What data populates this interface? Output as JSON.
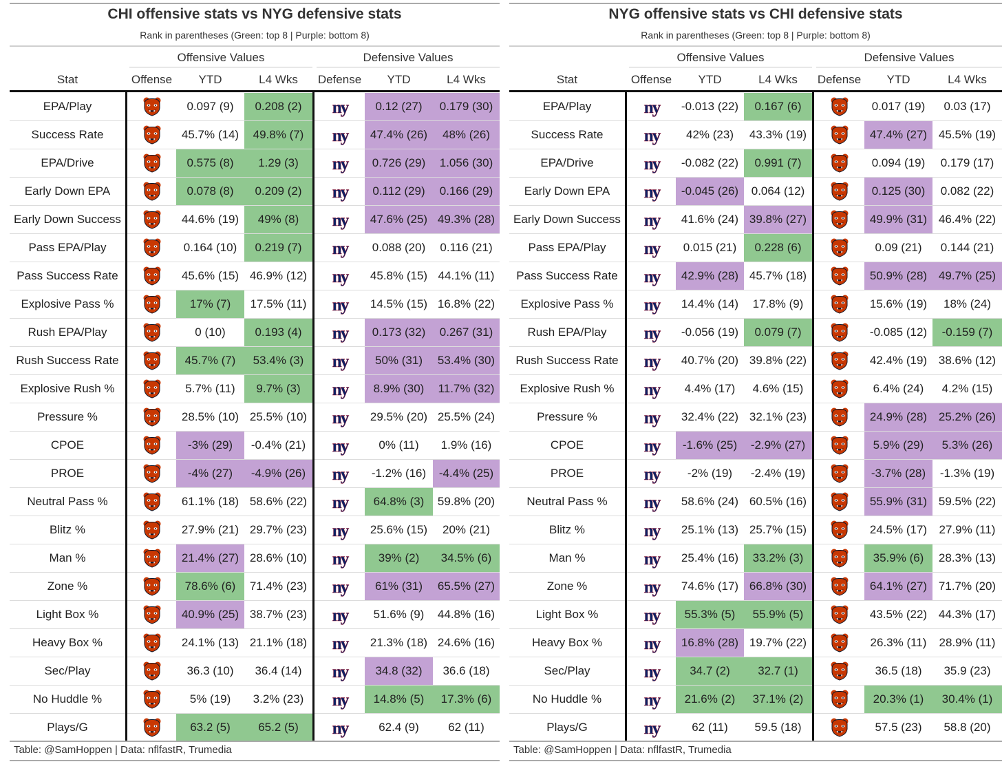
{
  "colors": {
    "green": "#90c890",
    "purple": "#c3a2d4",
    "bears": "#c83803",
    "giants": "#0b2265"
  },
  "column_headers": {
    "stat": "Stat",
    "offense": "Offense",
    "ytd": "YTD",
    "l4": "L4 Wks",
    "defense": "Defense"
  },
  "spanners": {
    "offensive": "Offensive Values",
    "defensive": "Defensive Values"
  },
  "subtitle": "Rank in parentheses (Green: top 8 | Purple: bottom 8)",
  "footer": "Table: @SamHoppen | Data: nflfastR, Trumedia",
  "tables": [
    {
      "title": "CHI offensive stats vs NYG defensive stats",
      "offense_logo": "bears-logo-icon",
      "defense_logo": "giants-ny-logo-icon",
      "rows": [
        {
          "stat": "EPA/Play",
          "off_ytd": "0.097 (9)",
          "off_l4": "0.208 (2)",
          "def_ytd": "0.12 (27)",
          "def_l4": "0.179 (30)",
          "hl": [
            "",
            "green",
            "purple",
            "purple"
          ]
        },
        {
          "stat": "Success Rate",
          "off_ytd": "45.7% (14)",
          "off_l4": "49.8% (7)",
          "def_ytd": "47.4% (26)",
          "def_l4": "48% (26)",
          "hl": [
            "",
            "green",
            "purple",
            "purple"
          ]
        },
        {
          "stat": "EPA/Drive",
          "off_ytd": "0.575 (8)",
          "off_l4": "1.29 (3)",
          "def_ytd": "0.726 (29)",
          "def_l4": "1.056 (30)",
          "hl": [
            "green",
            "green",
            "purple",
            "purple"
          ]
        },
        {
          "stat": "Early Down EPA",
          "off_ytd": "0.078 (8)",
          "off_l4": "0.209 (2)",
          "def_ytd": "0.112 (29)",
          "def_l4": "0.166 (29)",
          "hl": [
            "green",
            "green",
            "purple",
            "purple"
          ]
        },
        {
          "stat": "Early Down Success",
          "off_ytd": "44.6% (19)",
          "off_l4": "49% (8)",
          "def_ytd": "47.6% (25)",
          "def_l4": "49.3% (28)",
          "hl": [
            "",
            "green",
            "purple",
            "purple"
          ]
        },
        {
          "stat": "Pass EPA/Play",
          "off_ytd": "0.164 (10)",
          "off_l4": "0.219 (7)",
          "def_ytd": "0.088 (20)",
          "def_l4": "0.116 (21)",
          "hl": [
            "",
            "green",
            "",
            ""
          ]
        },
        {
          "stat": "Pass Success Rate",
          "off_ytd": "45.6% (15)",
          "off_l4": "46.9% (12)",
          "def_ytd": "45.8% (15)",
          "def_l4": "44.1% (11)",
          "hl": [
            "",
            "",
            "",
            ""
          ]
        },
        {
          "stat": "Explosive Pass %",
          "off_ytd": "17% (7)",
          "off_l4": "17.5% (11)",
          "def_ytd": "14.5% (15)",
          "def_l4": "16.8% (22)",
          "hl": [
            "green",
            "",
            "",
            ""
          ]
        },
        {
          "stat": "Rush EPA/Play",
          "off_ytd": "0 (10)",
          "off_l4": "0.193 (4)",
          "def_ytd": "0.173 (32)",
          "def_l4": "0.267 (31)",
          "hl": [
            "",
            "green",
            "purple",
            "purple"
          ]
        },
        {
          "stat": "Rush Success Rate",
          "off_ytd": "45.7% (7)",
          "off_l4": "53.4% (3)",
          "def_ytd": "50% (31)",
          "def_l4": "53.4% (30)",
          "hl": [
            "green",
            "green",
            "purple",
            "purple"
          ]
        },
        {
          "stat": "Explosive Rush %",
          "off_ytd": "5.7% (11)",
          "off_l4": "9.7% (3)",
          "def_ytd": "8.9% (30)",
          "def_l4": "11.7% (32)",
          "hl": [
            "",
            "green",
            "purple",
            "purple"
          ]
        },
        {
          "stat": "Pressure %",
          "off_ytd": "28.5% (10)",
          "off_l4": "25.5% (10)",
          "def_ytd": "29.5% (20)",
          "def_l4": "25.5% (24)",
          "hl": [
            "",
            "",
            "",
            ""
          ]
        },
        {
          "stat": "CPOE",
          "off_ytd": "-3% (29)",
          "off_l4": "-0.4% (21)",
          "def_ytd": "0% (11)",
          "def_l4": "1.9% (16)",
          "hl": [
            "purple",
            "",
            "",
            ""
          ]
        },
        {
          "stat": "PROE",
          "off_ytd": "-4% (27)",
          "off_l4": "-4.9% (26)",
          "def_ytd": "-1.2% (16)",
          "def_l4": "-4.4% (25)",
          "hl": [
            "purple",
            "purple",
            "",
            "purple"
          ]
        },
        {
          "stat": "Neutral Pass %",
          "off_ytd": "61.1% (18)",
          "off_l4": "58.6% (22)",
          "def_ytd": "64.8% (3)",
          "def_l4": "59.8% (20)",
          "hl": [
            "",
            "",
            "green",
            ""
          ]
        },
        {
          "stat": "Blitz %",
          "off_ytd": "27.9% (21)",
          "off_l4": "29.7% (23)",
          "def_ytd": "25.6% (15)",
          "def_l4": "20% (21)",
          "hl": [
            "",
            "",
            "",
            ""
          ]
        },
        {
          "stat": "Man %",
          "off_ytd": "21.4% (27)",
          "off_l4": "28.6% (10)",
          "def_ytd": "39% (2)",
          "def_l4": "34.5% (6)",
          "hl": [
            "purple",
            "",
            "green",
            "green"
          ]
        },
        {
          "stat": "Zone %",
          "off_ytd": "78.6% (6)",
          "off_l4": "71.4% (23)",
          "def_ytd": "61% (31)",
          "def_l4": "65.5% (27)",
          "hl": [
            "green",
            "",
            "purple",
            "purple"
          ]
        },
        {
          "stat": "Light Box %",
          "off_ytd": "40.9% (25)",
          "off_l4": "38.7% (23)",
          "def_ytd": "51.6% (9)",
          "def_l4": "44.8% (16)",
          "hl": [
            "purple",
            "",
            "",
            ""
          ]
        },
        {
          "stat": "Heavy Box %",
          "off_ytd": "24.1% (13)",
          "off_l4": "21.1% (18)",
          "def_ytd": "21.3% (18)",
          "def_l4": "24.6% (16)",
          "hl": [
            "",
            "",
            "",
            ""
          ]
        },
        {
          "stat": "Sec/Play",
          "off_ytd": "36.3 (10)",
          "off_l4": "36.4 (14)",
          "def_ytd": "34.8 (32)",
          "def_l4": "36.6 (18)",
          "hl": [
            "",
            "",
            "purple",
            ""
          ]
        },
        {
          "stat": "No Huddle %",
          "off_ytd": "5% (19)",
          "off_l4": "3.2% (23)",
          "def_ytd": "14.8% (5)",
          "def_l4": "17.3% (6)",
          "hl": [
            "",
            "",
            "green",
            "green"
          ]
        },
        {
          "stat": "Plays/G",
          "off_ytd": "63.2 (5)",
          "off_l4": "65.2 (5)",
          "def_ytd": "62.4 (9)",
          "def_l4": "62 (11)",
          "hl": [
            "green",
            "green",
            "",
            ""
          ]
        }
      ]
    },
    {
      "title": "NYG offensive stats vs CHI defensive stats",
      "offense_logo": "giants-ny-logo-icon",
      "defense_logo": "bears-logo-icon",
      "rows": [
        {
          "stat": "EPA/Play",
          "off_ytd": "-0.013 (22)",
          "off_l4": "0.167 (6)",
          "def_ytd": "0.017 (19)",
          "def_l4": "0.03 (17)",
          "hl": [
            "",
            "green",
            "",
            ""
          ]
        },
        {
          "stat": "Success Rate",
          "off_ytd": "42% (23)",
          "off_l4": "43.3% (19)",
          "def_ytd": "47.4% (27)",
          "def_l4": "45.5% (19)",
          "hl": [
            "",
            "",
            "purple",
            ""
          ]
        },
        {
          "stat": "EPA/Drive",
          "off_ytd": "-0.082 (22)",
          "off_l4": "0.991 (7)",
          "def_ytd": "0.094 (19)",
          "def_l4": "0.179 (17)",
          "hl": [
            "",
            "green",
            "",
            ""
          ]
        },
        {
          "stat": "Early Down EPA",
          "off_ytd": "-0.045 (26)",
          "off_l4": "0.064 (12)",
          "def_ytd": "0.125 (30)",
          "def_l4": "0.082 (22)",
          "hl": [
            "purple",
            "",
            "purple",
            ""
          ]
        },
        {
          "stat": "Early Down Success",
          "off_ytd": "41.6% (24)",
          "off_l4": "39.8% (27)",
          "def_ytd": "49.9% (31)",
          "def_l4": "46.4% (22)",
          "hl": [
            "",
            "purple",
            "purple",
            ""
          ]
        },
        {
          "stat": "Pass EPA/Play",
          "off_ytd": "0.015 (21)",
          "off_l4": "0.228 (6)",
          "def_ytd": "0.09 (21)",
          "def_l4": "0.144 (21)",
          "hl": [
            "",
            "green",
            "",
            ""
          ]
        },
        {
          "stat": "Pass Success Rate",
          "off_ytd": "42.9% (28)",
          "off_l4": "45.7% (18)",
          "def_ytd": "50.9% (28)",
          "def_l4": "49.7% (25)",
          "hl": [
            "purple",
            "",
            "purple",
            "purple"
          ]
        },
        {
          "stat": "Explosive Pass %",
          "off_ytd": "14.4% (14)",
          "off_l4": "17.8% (9)",
          "def_ytd": "15.6% (19)",
          "def_l4": "18% (24)",
          "hl": [
            "",
            "",
            "",
            ""
          ]
        },
        {
          "stat": "Rush EPA/Play",
          "off_ytd": "-0.056 (19)",
          "off_l4": "0.079 (7)",
          "def_ytd": "-0.085 (12)",
          "def_l4": "-0.159 (7)",
          "hl": [
            "",
            "green",
            "",
            "green"
          ]
        },
        {
          "stat": "Rush Success Rate",
          "off_ytd": "40.7% (20)",
          "off_l4": "39.8% (22)",
          "def_ytd": "42.4% (19)",
          "def_l4": "38.6% (12)",
          "hl": [
            "",
            "",
            "",
            ""
          ]
        },
        {
          "stat": "Explosive Rush %",
          "off_ytd": "4.4% (17)",
          "off_l4": "4.6% (15)",
          "def_ytd": "6.4% (24)",
          "def_l4": "4.2% (15)",
          "hl": [
            "",
            "",
            "",
            ""
          ]
        },
        {
          "stat": "Pressure %",
          "off_ytd": "32.4% (22)",
          "off_l4": "32.1% (23)",
          "def_ytd": "24.9% (28)",
          "def_l4": "25.2% (26)",
          "hl": [
            "",
            "",
            "purple",
            "purple"
          ]
        },
        {
          "stat": "CPOE",
          "off_ytd": "-1.6% (25)",
          "off_l4": "-2.9% (27)",
          "def_ytd": "5.9% (29)",
          "def_l4": "5.3% (26)",
          "hl": [
            "purple",
            "purple",
            "purple",
            "purple"
          ]
        },
        {
          "stat": "PROE",
          "off_ytd": "-2% (19)",
          "off_l4": "-2.4% (19)",
          "def_ytd": "-3.7% (28)",
          "def_l4": "-1.3% (19)",
          "hl": [
            "",
            "",
            "purple",
            ""
          ]
        },
        {
          "stat": "Neutral Pass %",
          "off_ytd": "58.6% (24)",
          "off_l4": "60.5% (16)",
          "def_ytd": "55.9% (31)",
          "def_l4": "59.5% (22)",
          "hl": [
            "",
            "",
            "purple",
            ""
          ]
        },
        {
          "stat": "Blitz %",
          "off_ytd": "25.1% (13)",
          "off_l4": "25.7% (15)",
          "def_ytd": "24.5% (17)",
          "def_l4": "27.9% (11)",
          "hl": [
            "",
            "",
            "",
            ""
          ]
        },
        {
          "stat": "Man %",
          "off_ytd": "25.4% (16)",
          "off_l4": "33.2% (3)",
          "def_ytd": "35.9% (6)",
          "def_l4": "28.3% (13)",
          "hl": [
            "",
            "green",
            "green",
            ""
          ]
        },
        {
          "stat": "Zone %",
          "off_ytd": "74.6% (17)",
          "off_l4": "66.8% (30)",
          "def_ytd": "64.1% (27)",
          "def_l4": "71.7% (20)",
          "hl": [
            "",
            "purple",
            "purple",
            ""
          ]
        },
        {
          "stat": "Light Box %",
          "off_ytd": "55.3% (5)",
          "off_l4": "55.9% (5)",
          "def_ytd": "43.5% (22)",
          "def_l4": "44.3% (17)",
          "hl": [
            "green",
            "green",
            "",
            ""
          ]
        },
        {
          "stat": "Heavy Box %",
          "off_ytd": "16.8% (28)",
          "off_l4": "19.7% (22)",
          "def_ytd": "26.3% (11)",
          "def_l4": "28.9% (11)",
          "hl": [
            "purple",
            "",
            "",
            ""
          ]
        },
        {
          "stat": "Sec/Play",
          "off_ytd": "34.7 (2)",
          "off_l4": "32.7 (1)",
          "def_ytd": "36.5 (18)",
          "def_l4": "35.9 (23)",
          "hl": [
            "green",
            "green",
            "",
            ""
          ]
        },
        {
          "stat": "No Huddle %",
          "off_ytd": "21.6% (2)",
          "off_l4": "37.1% (2)",
          "def_ytd": "20.3% (1)",
          "def_l4": "30.4% (1)",
          "hl": [
            "green",
            "green",
            "green",
            "green"
          ]
        },
        {
          "stat": "Plays/G",
          "off_ytd": "62 (11)",
          "off_l4": "59.5 (18)",
          "def_ytd": "57.5 (23)",
          "def_l4": "58.8 (20)",
          "hl": [
            "",
            "",
            "",
            ""
          ]
        }
      ]
    }
  ]
}
